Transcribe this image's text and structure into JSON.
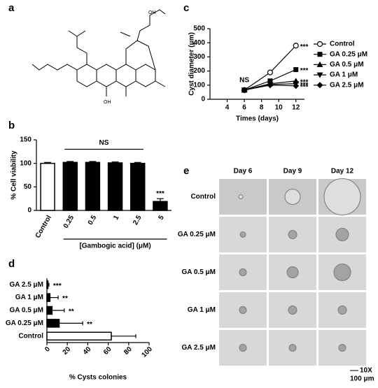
{
  "panel_labels": [
    "a",
    "b",
    "c",
    "d",
    "e"
  ],
  "chart_data": [
    {
      "type": "bar",
      "y_label": "% Cell viability",
      "x_label": "[Gambogic acid] (μM)",
      "categories": [
        "Control",
        "0.25",
        "0.5",
        "1",
        "2.5",
        "5"
      ],
      "values": [
        100,
        102,
        102,
        101,
        100,
        19
      ],
      "errors": [
        2,
        2,
        2,
        2,
        2,
        6
      ],
      "colors": [
        "#ffffff",
        "#000000",
        "#000000",
        "#000000",
        "#000000",
        "#000000"
      ],
      "significance": [
        null,
        null,
        null,
        null,
        null,
        "***"
      ],
      "bracket_label": "NS",
      "ylim": [
        0,
        150
      ],
      "yticks": [
        0,
        50,
        100,
        150
      ]
    },
    {
      "type": "line",
      "y_label": "Cyst diameter (μm)",
      "x_label": "Times (days)",
      "x": [
        6,
        9,
        12
      ],
      "xlim": [
        2,
        13
      ],
      "xticks": [
        4,
        6,
        8,
        10,
        12
      ],
      "ylim": [
        0,
        500
      ],
      "yticks": [
        0,
        100,
        200,
        300,
        400,
        500
      ],
      "annotation": "NS",
      "series": [
        {
          "name": "Control",
          "color": "#000000",
          "marker": "open-circle",
          "values": [
            65,
            190,
            380
          ],
          "significance": "***"
        },
        {
          "name": "GA 0.25 μM",
          "color": "#000000",
          "marker": "square",
          "values": [
            65,
            130,
            210
          ],
          "significance": "***"
        },
        {
          "name": "GA 0.5 μM",
          "color": "#000000",
          "marker": "triangle-up",
          "values": [
            65,
            110,
            130
          ],
          "significance": "***"
        },
        {
          "name": "GA 1 μM",
          "color": "#000000",
          "marker": "triangle-down",
          "values": [
            65,
            105,
            110
          ],
          "significance": "***"
        },
        {
          "name": "GA 2.5 μM",
          "color": "#000000",
          "marker": "diamond",
          "values": [
            65,
            100,
            95
          ],
          "significance": "***"
        }
      ]
    },
    {
      "type": "barh",
      "x_label": "% Cysts colonies",
      "categories": [
        "GA 2.5 μM",
        "GA 1 μM",
        "GA 0.5 μM",
        "GA 0.25 μM",
        "Control"
      ],
      "values": [
        1,
        3,
        5,
        12,
        63
      ],
      "errors": [
        1,
        8,
        12,
        23,
        24
      ],
      "colors": [
        "#000000",
        "#000000",
        "#000000",
        "#000000",
        "#ffffff"
      ],
      "significance": [
        "***",
        "**",
        "**",
        "**",
        null
      ],
      "xlim": [
        0,
        100
      ],
      "xticks": [
        0,
        20,
        40,
        60,
        80,
        100
      ]
    }
  ],
  "image_grid": {
    "columns": [
      "Day 6",
      "Day 9",
      "Day 12"
    ],
    "rows": [
      "Control",
      "GA 0.25 μM",
      "GA 0.5 μM",
      "GA 1 μM",
      "GA 2.5 μM"
    ],
    "magnification": "10X",
    "scale_bar": "100 μm"
  }
}
